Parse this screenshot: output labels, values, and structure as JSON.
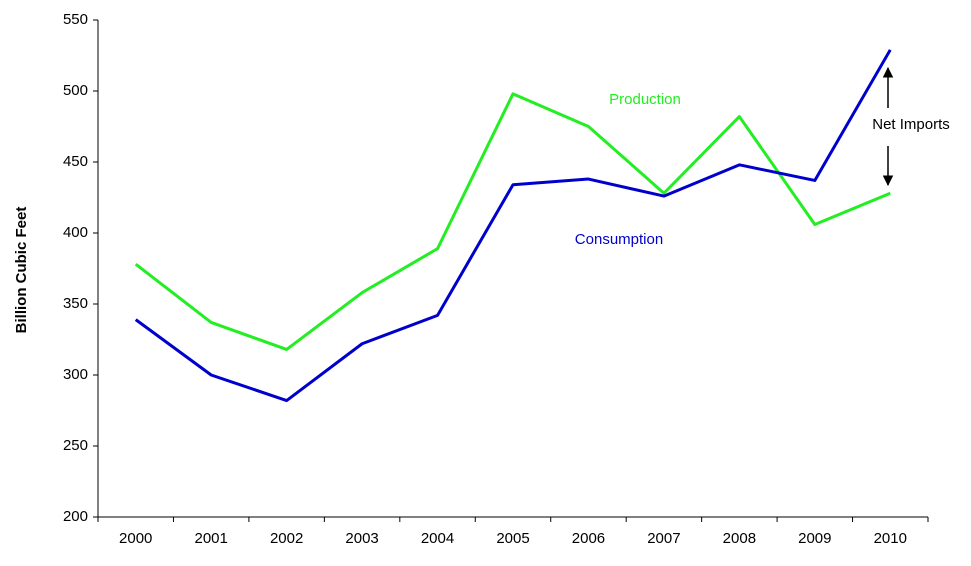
{
  "chart_data": {
    "type": "line",
    "y_label": "Billion Cubic Feet",
    "annotation": "Net Imports",
    "categories": [
      "2000",
      "2001",
      "2002",
      "2003",
      "2004",
      "2005",
      "2006",
      "2007",
      "2008",
      "2009",
      "2010"
    ],
    "series": [
      {
        "name": "Production",
        "color": "#22ee22",
        "values": [
          378,
          337,
          318,
          358,
          389,
          498,
          475,
          428,
          482,
          406,
          428
        ]
      },
      {
        "name": "Consumption",
        "color": "#0000cc",
        "values": [
          339,
          300,
          282,
          322,
          342,
          434,
          438,
          426,
          448,
          437,
          529
        ]
      }
    ],
    "ylim": [
      200,
      550
    ],
    "yticks": [
      200,
      250,
      300,
      350,
      400,
      450,
      500,
      550
    ],
    "grid": false
  }
}
